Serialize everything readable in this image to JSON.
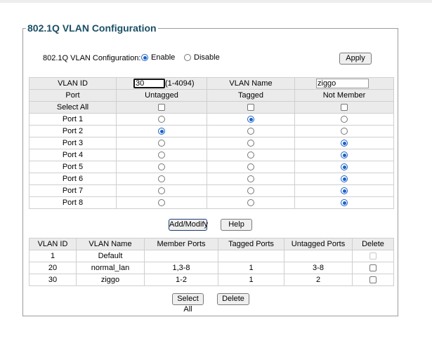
{
  "panel": {
    "title": "802.1Q VLAN Configuration"
  },
  "global": {
    "label": "802.1Q VLAN Configuration:",
    "enable_label": "Enable",
    "disable_label": "Disable",
    "enabled": true,
    "apply_label": "Apply"
  },
  "config": {
    "vlan_id_label": "VLAN ID",
    "vlan_id_value": "30",
    "vlan_id_range": "(1-4094)",
    "vlan_name_label": "VLAN Name",
    "vlan_name_value": "ziggo",
    "port_header": "Port",
    "col_untagged": "Untagged",
    "col_tagged": "Tagged",
    "col_not_member": "Not Member",
    "select_all_label": "Select All",
    "ports": [
      {
        "name": "Port 1",
        "mode": "tagged"
      },
      {
        "name": "Port 2",
        "mode": "untagged"
      },
      {
        "name": "Port 3",
        "mode": "not_member"
      },
      {
        "name": "Port 4",
        "mode": "not_member"
      },
      {
        "name": "Port 5",
        "mode": "not_member"
      },
      {
        "name": "Port 6",
        "mode": "not_member"
      },
      {
        "name": "Port 7",
        "mode": "not_member"
      },
      {
        "name": "Port 8",
        "mode": "not_member"
      }
    ]
  },
  "actions": {
    "add_modify_label": "Add/Modify",
    "help_label": "Help"
  },
  "vlan_table": {
    "headers": [
      "VLAN ID",
      "VLAN Name",
      "Member Ports",
      "Tagged Ports",
      "Untagged Ports",
      "Delete"
    ],
    "rows": [
      {
        "id": "1",
        "name": "Default",
        "member": "",
        "tagged": "",
        "untagged": "",
        "deletable": false
      },
      {
        "id": "20",
        "name": "normal_lan",
        "member": "1,3-8",
        "tagged": "1",
        "untagged": "3-8",
        "deletable": true
      },
      {
        "id": "30",
        "name": "ziggo",
        "member": "1-2",
        "tagged": "1",
        "untagged": "2",
        "deletable": true
      }
    ]
  },
  "bottom": {
    "select_all_label": "Select All",
    "delete_label": "Delete"
  }
}
